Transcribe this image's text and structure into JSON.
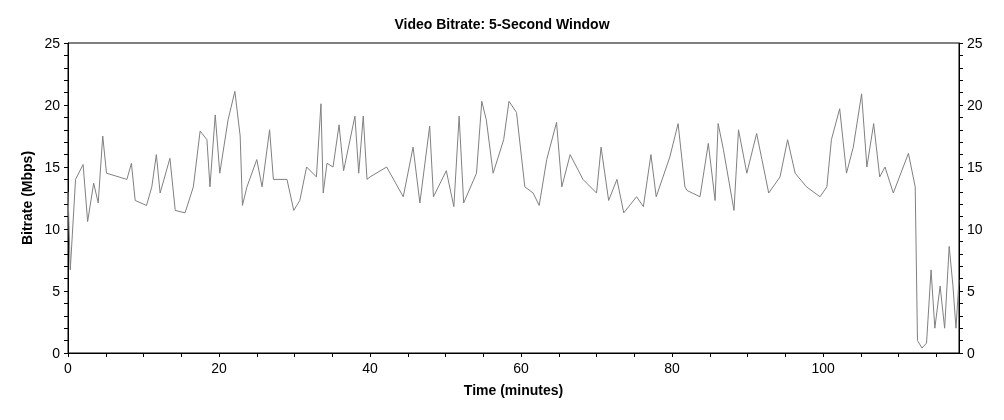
{
  "chart_data": {
    "type": "line",
    "title": "Video Bitrate: 5-Second Window",
    "xlabel": "Time (minutes)",
    "ylabel": "Bitrate (Mbps)",
    "xlim": [
      0,
      118
    ],
    "ylim": [
      0,
      25
    ],
    "y2lim": [
      0,
      25
    ],
    "xticks": [
      0,
      {
        "value": 5,
        "label": null
      },
      {
        "value": 10,
        "label": null
      },
      {
        "value": 15,
        "label": null
      },
      20,
      {
        "value": 25,
        "label": null
      },
      {
        "value": 30,
        "label": null
      },
      {
        "value": 35,
        "label": null
      },
      40,
      {
        "value": 45,
        "label": null
      },
      {
        "value": 50,
        "label": null
      },
      {
        "value": 55,
        "label": null
      },
      60,
      {
        "value": 65,
        "label": null
      },
      {
        "value": 70,
        "label": null
      },
      {
        "value": 75,
        "label": null
      },
      80,
      {
        "value": 85,
        "label": null
      },
      {
        "value": 90,
        "label": null
      },
      {
        "value": 95,
        "label": null
      },
      100,
      {
        "value": 105,
        "label": null
      },
      {
        "value": 110,
        "label": null
      },
      {
        "value": 115,
        "label": null
      }
    ],
    "yticks": [
      0,
      {
        "value": 1,
        "label": null
      },
      {
        "value": 2,
        "label": null
      },
      {
        "value": 3,
        "label": null
      },
      {
        "value": 4,
        "label": null
      },
      5,
      {
        "value": 6,
        "label": null
      },
      {
        "value": 7,
        "label": null
      },
      {
        "value": 8,
        "label": null
      },
      {
        "value": 9,
        "label": null
      },
      10,
      {
        "value": 11,
        "label": null
      },
      {
        "value": 12,
        "label": null
      },
      {
        "value": 13,
        "label": null
      },
      {
        "value": 14,
        "label": null
      },
      15,
      {
        "value": 16,
        "label": null
      },
      {
        "value": 17,
        "label": null
      },
      {
        "value": 18,
        "label": null
      },
      {
        "value": 19,
        "label": null
      },
      20,
      {
        "value": 21,
        "label": null
      },
      {
        "value": 22,
        "label": null
      },
      {
        "value": 23,
        "label": null
      },
      {
        "value": 24,
        "label": null
      },
      25
    ],
    "y2ticks": [
      0,
      {
        "value": 1,
        "label": null
      },
      {
        "value": 2,
        "label": null
      },
      {
        "value": 3,
        "label": null
      },
      {
        "value": 4,
        "label": null
      },
      5,
      {
        "value": 6,
        "label": null
      },
      {
        "value": 7,
        "label": null
      },
      {
        "value": 8,
        "label": null
      },
      {
        "value": 9,
        "label": null
      },
      10,
      {
        "value": 11,
        "label": null
      },
      {
        "value": 12,
        "label": null
      },
      {
        "value": 13,
        "label": null
      },
      {
        "value": 14,
        "label": null
      },
      15,
      {
        "value": 16,
        "label": null
      },
      {
        "value": 17,
        "label": null
      },
      {
        "value": 18,
        "label": null
      },
      {
        "value": 19,
        "label": null
      },
      20,
      {
        "value": 21,
        "label": null
      },
      {
        "value": 22,
        "label": null
      },
      {
        "value": 23,
        "label": null
      },
      {
        "value": 24,
        "label": null
      },
      25
    ],
    "grid": false,
    "marker": "none",
    "line_style": "solid",
    "series": [
      {
        "color": "#808080",
        "x": [
          0,
          0.3,
          1,
          2,
          2.6,
          3.4,
          4,
          4.6,
          5.1,
          7.8,
          8.4,
          8.9,
          10.4,
          11.1,
          11.7,
          12.2,
          13.5,
          14.2,
          15.5,
          16.6,
          17.5,
          18.4,
          18.8,
          19.5,
          20.1,
          21.2,
          22.1,
          22.8,
          23.1,
          23.7,
          25,
          25.7,
          26.7,
          27.2,
          29,
          29.9,
          30.7,
          31.6,
          32.9,
          33.5,
          33.8,
          34.3,
          35.1,
          35.9,
          36.5,
          38,
          38.5,
          39.1,
          39.6,
          40,
          42.2,
          44.4,
          45.7,
          46.6,
          47.9,
          48.4,
          50.1,
          51.1,
          51.8,
          52.4,
          54.1,
          54.8,
          55.4,
          56.3,
          57.7,
          58.4,
          59.4,
          60.5,
          61.6,
          62.4,
          63.4,
          64.7,
          65.4,
          66.5,
          68.2,
          70,
          70.6,
          71.6,
          72.7,
          73.6,
          75.3,
          76.2,
          77.2,
          77.9,
          79.7,
          80.8,
          81.7,
          82,
          83.7,
          84.8,
          85.7,
          86.1,
          86.8,
          88.2,
          88.8,
          89.9,
          91.2,
          91.9,
          92.8,
          94.3,
          95.3,
          96.3,
          97.8,
          99.6,
          100.5,
          101.1,
          102.2,
          103.1,
          104,
          105.1,
          105.8,
          106.7,
          107.5,
          108.2,
          109.3,
          111.3,
          112.2,
          112.5,
          113.1,
          113.7,
          114.3,
          114.8,
          115.5,
          116.1,
          116.7,
          117.2,
          117.6,
          118
        ],
        "values": [
          13,
          6.7,
          14,
          15.2,
          10.6,
          13.7,
          12.1,
          17.5,
          14.5,
          14,
          15.3,
          12.3,
          11.9,
          13.4,
          16,
          12.9,
          15.7,
          11.5,
          11.3,
          13.4,
          17.9,
          17.2,
          13.4,
          19.2,
          14.5,
          18.8,
          21.1,
          17.5,
          11.9,
          13.4,
          15.6,
          13.4,
          18,
          14,
          14,
          11.5,
          12.3,
          15,
          14.2,
          20.1,
          12.9,
          15.3,
          15,
          18.4,
          14.7,
          19.1,
          14.5,
          19.1,
          14,
          14.2,
          15,
          12.6,
          16.6,
          12.1,
          18.3,
          12.6,
          14.7,
          11.8,
          19.1,
          12.1,
          14.5,
          20.3,
          18.8,
          14.5,
          17.2,
          20.3,
          19.4,
          13.4,
          12.9,
          11.9,
          15.6,
          18.6,
          13.4,
          16,
          14,
          12.9,
          16.6,
          12.3,
          14,
          11.3,
          12.6,
          11.8,
          16,
          12.6,
          15.8,
          18.5,
          13.4,
          13.1,
          12.6,
          16.9,
          12.3,
          18.5,
          16.4,
          11.5,
          18,
          14.5,
          17.7,
          15.6,
          12.9,
          14.2,
          17.2,
          14.5,
          13.4,
          12.6,
          13.4,
          17.2,
          19.7,
          14.5,
          16.6,
          20.9,
          15,
          18.5,
          14.2,
          15,
          12.9,
          16.1,
          13.4,
          1,
          0.4,
          0.8,
          6.7,
          2,
          5.4,
          2,
          8.6,
          5.4,
          2,
          5.9
        ]
      }
    ]
  }
}
